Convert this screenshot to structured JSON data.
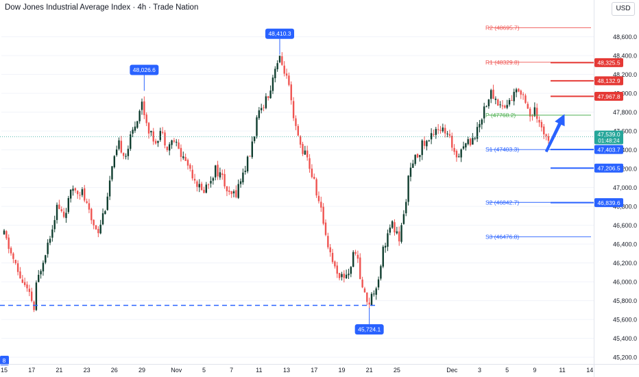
{
  "title": "Dow Jones Industrial Average Index · 4h · Trade Nation",
  "currency": "USD",
  "colors": {
    "up": "#0f3d2e",
    "down": "#ef5350",
    "blue": "#2962ff",
    "red": "#e53935",
    "green": "#4caf50",
    "grid": "#f0f3fa",
    "axis_text": "#131722"
  },
  "chart_data": {
    "type": "candlestick",
    "ylim": [
      45150,
      48830
    ],
    "y_ticks": [
      {
        "value": 45200,
        "label": "45,200.0"
      },
      {
        "value": 45400,
        "label": "45,400.0"
      },
      {
        "value": 45600,
        "label": "45,600.0"
      },
      {
        "value": 45800,
        "label": "45,800.0"
      },
      {
        "value": 46000,
        "label": "46,000.0"
      },
      {
        "value": 46200,
        "label": "46,200.0"
      },
      {
        "value": 46400,
        "label": "46,400.0"
      },
      {
        "value": 46600,
        "label": "46,600.0"
      },
      {
        "value": 46800,
        "label": "46,800.0"
      },
      {
        "value": 47000,
        "label": "47,000.0"
      },
      {
        "value": 47200,
        "label": "47,200.0"
      },
      {
        "value": 47400,
        "label": "47,400.0"
      },
      {
        "value": 47600,
        "label": "47,600.0"
      },
      {
        "value": 47800,
        "label": "47,800.0"
      },
      {
        "value": 48000,
        "label": "48,000.0"
      },
      {
        "value": 48200,
        "label": "48,200.0"
      },
      {
        "value": 48400,
        "label": "48,400.0"
      },
      {
        "value": 48600,
        "label": "48,600.0"
      }
    ],
    "x_ticks": [
      {
        "t": 0,
        "label": "15"
      },
      {
        "t": 12,
        "label": "17"
      },
      {
        "t": 24,
        "label": "21"
      },
      {
        "t": 36,
        "label": "23"
      },
      {
        "t": 48,
        "label": "26"
      },
      {
        "t": 60,
        "label": "29"
      },
      {
        "t": 75,
        "label": "Nov"
      },
      {
        "t": 87,
        "label": "5"
      },
      {
        "t": 99,
        "label": "7"
      },
      {
        "t": 111,
        "label": "11"
      },
      {
        "t": 123,
        "label": "13"
      },
      {
        "t": 135,
        "label": "17"
      },
      {
        "t": 147,
        "label": "19"
      },
      {
        "t": 159,
        "label": "21"
      },
      {
        "t": 171,
        "label": "25"
      },
      {
        "t": 195,
        "label": "Dec"
      },
      {
        "t": 207,
        "label": "3"
      },
      {
        "t": 219,
        "label": "5"
      },
      {
        "t": 231,
        "label": "9"
      },
      {
        "t": 243,
        "label": "11"
      },
      {
        "t": 255,
        "label": "14"
      }
    ],
    "path": [
      [
        0,
        46500
      ],
      [
        3,
        46300
      ],
      [
        6,
        46100
      ],
      [
        9,
        45950
      ],
      [
        12,
        45800
      ],
      [
        13,
        45700
      ],
      [
        14,
        45950
      ],
      [
        17,
        46250
      ],
      [
        20,
        46500
      ],
      [
        23,
        46800
      ],
      [
        26,
        46700
      ],
      [
        30,
        47000
      ],
      [
        34,
        46950
      ],
      [
        38,
        46650
      ],
      [
        41,
        46550
      ],
      [
        44,
        46800
      ],
      [
        47,
        47200
      ],
      [
        50,
        47450
      ],
      [
        53,
        47350
      ],
      [
        56,
        47600
      ],
      [
        58,
        47750
      ],
      [
        60,
        47900
      ],
      [
        62,
        47700
      ],
      [
        64,
        47550
      ],
      [
        66,
        47500
      ],
      [
        68,
        47600
      ],
      [
        71,
        47450
      ],
      [
        74,
        47500
      ],
      [
        77,
        47350
      ],
      [
        80,
        47250
      ],
      [
        83,
        47100
      ],
      [
        86,
        46950
      ],
      [
        89,
        47050
      ],
      [
        92,
        47200
      ],
      [
        95,
        47100
      ],
      [
        98,
        46900
      ],
      [
        101,
        46950
      ],
      [
        104,
        47150
      ],
      [
        107,
        47350
      ],
      [
        110,
        47700
      ],
      [
        113,
        47900
      ],
      [
        116,
        48050
      ],
      [
        118,
        48300
      ],
      [
        120,
        48350
      ],
      [
        122,
        48250
      ],
      [
        124,
        48050
      ],
      [
        126,
        47700
      ],
      [
        129,
        47450
      ],
      [
        132,
        47300
      ],
      [
        135,
        47050
      ],
      [
        138,
        46750
      ],
      [
        141,
        46400
      ],
      [
        144,
        46150
      ],
      [
        147,
        46050
      ],
      [
        150,
        46100
      ],
      [
        153,
        46350
      ],
      [
        155,
        46050
      ],
      [
        157,
        45850
      ],
      [
        159,
        45790
      ],
      [
        161,
        45900
      ],
      [
        163,
        46050
      ],
      [
        165,
        46350
      ],
      [
        167,
        46500
      ],
      [
        169,
        46600
      ],
      [
        172,
        46450
      ],
      [
        174,
        46700
      ],
      [
        176,
        47100
      ],
      [
        179,
        47300
      ],
      [
        182,
        47450
      ],
      [
        185,
        47500
      ],
      [
        188,
        47650
      ],
      [
        191,
        47600
      ],
      [
        194,
        47500
      ],
      [
        197,
        47350
      ],
      [
        200,
        47450
      ],
      [
        203,
        47500
      ],
      [
        206,
        47600
      ],
      [
        209,
        47850
      ],
      [
        212,
        48000
      ],
      [
        215,
        47900
      ],
      [
        218,
        47850
      ],
      [
        221,
        47950
      ],
      [
        224,
        48050
      ],
      [
        227,
        47950
      ],
      [
        229,
        47750
      ],
      [
        231,
        47800
      ],
      [
        233,
        47650
      ],
      [
        235,
        47600
      ],
      [
        237,
        47550
      ]
    ],
    "candles_count": 238,
    "last_price": "47,539.0",
    "countdown": "01:48:24",
    "pivots": [
      {
        "name": "R2",
        "value": 48695.7,
        "label": "R2 (48695.7)",
        "color": "#ef5350"
      },
      {
        "name": "R1",
        "value": 48329.8,
        "label": "R1 (48329.8)",
        "color": "#ef5350"
      },
      {
        "name": "P",
        "value": 47768.2,
        "label": "P (47768.2)",
        "color": "#4caf50"
      },
      {
        "name": "S1",
        "value": 47403.3,
        "label": "S1 (47403.3)",
        "color": "#2962ff"
      },
      {
        "name": "S2",
        "value": 46842.7,
        "label": "S2 (46842.7)",
        "color": "#2962ff"
      },
      {
        "name": "S3",
        "value": 46476.8,
        "label": "S3 (46476.8)",
        "color": "#2962ff"
      }
    ],
    "levels": [
      {
        "value": 48325.5,
        "label": "48,325.5",
        "color": "#e53935"
      },
      {
        "value": 48132.9,
        "label": "48,132.9",
        "color": "#e53935"
      },
      {
        "value": 47967.8,
        "label": "47,967.8",
        "color": "#e53935"
      },
      {
        "value": 47403.7,
        "label": "47,403.7",
        "color": "#2962ff"
      },
      {
        "value": 47206.5,
        "label": "47,206.5",
        "color": "#2962ff"
      },
      {
        "value": 46839.6,
        "label": "46,839.6",
        "color": "#2962ff"
      }
    ],
    "annotations": [
      {
        "label": "48,026.6",
        "t": 61,
        "value": 48026.6,
        "position": "above"
      },
      {
        "label": "48,410.3",
        "t": 120,
        "value": 48410.3,
        "position": "above"
      },
      {
        "label": "45,724.1",
        "t": 159,
        "value": 45724.1,
        "position": "below"
      }
    ],
    "support_line": {
      "value": 45750,
      "t_start": 0,
      "t_end": 162
    },
    "left_cut_label": "8",
    "arrow": {
      "t_start": 236,
      "v_start": 47380,
      "t_end": 244,
      "v_end": 47780
    }
  }
}
